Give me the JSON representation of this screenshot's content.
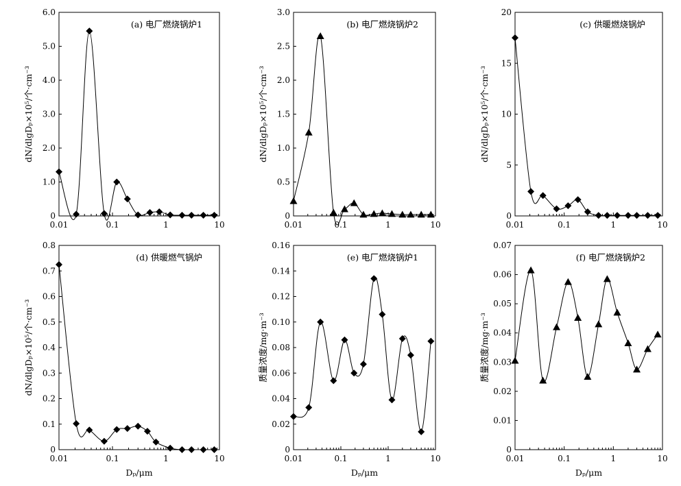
{
  "figure": {
    "x_axis_label": "Dₚ/μm",
    "x_ticks": [
      "0.01",
      "0.1",
      "1",
      "10"
    ]
  },
  "chart_data": [
    {
      "type": "line",
      "title": "(a) 电厂燃烧锅炉1",
      "ylabel": "dN/dlgDₚ×10⁵/个·cm⁻³",
      "xlabel": "",
      "xscale": "log",
      "xlim": [
        0.01,
        10
      ],
      "ylim": [
        0,
        6.0
      ],
      "yticks": [
        "0",
        "1.0",
        "2.0",
        "3.0",
        "4.0",
        "5.0",
        "6.0"
      ],
      "marker": "diamond",
      "grid": false,
      "series": [
        {
          "x": [
            0.01,
            0.021,
            0.037,
            0.07,
            0.12,
            0.19,
            0.3,
            0.5,
            0.75,
            1.2,
            2,
            3,
            5,
            8
          ],
          "y": [
            1.3,
            0.05,
            5.45,
            0.07,
            1.0,
            0.5,
            0.03,
            0.1,
            0.12,
            0.03,
            0.02,
            0.02,
            0.02,
            0.02
          ]
        }
      ]
    },
    {
      "type": "line",
      "title": "(b) 电厂燃烧锅炉2",
      "ylabel": "dN/dlgDₚ×10⁵/个·cm⁻³",
      "xlabel": "",
      "xscale": "log",
      "xlim": [
        0.01,
        10
      ],
      "ylim": [
        0,
        3.0
      ],
      "yticks": [
        "0",
        "0.5",
        "1.0",
        "1.5",
        "2.0",
        "2.5",
        "3.0"
      ],
      "marker": "triangle",
      "grid": false,
      "series": [
        {
          "x": [
            0.01,
            0.021,
            0.037,
            0.07,
            0.12,
            0.19,
            0.3,
            0.5,
            0.75,
            1.2,
            2,
            3,
            5,
            8
          ],
          "y": [
            0.22,
            1.23,
            2.65,
            0.05,
            0.1,
            0.19,
            0.02,
            0.03,
            0.04,
            0.03,
            0.02,
            0.02,
            0.02,
            0.02
          ]
        }
      ]
    },
    {
      "type": "line",
      "title": "(c) 供暖燃烧锅炉",
      "ylabel": "dN/dlgDₚ×10⁵/个·cm⁻³",
      "xlabel": "",
      "xscale": "log",
      "xlim": [
        0.01,
        10
      ],
      "ylim": [
        0,
        20
      ],
      "yticks": [
        "0",
        "5",
        "10",
        "15",
        "20"
      ],
      "marker": "diamond",
      "grid": false,
      "series": [
        {
          "x": [
            0.01,
            0.021,
            0.037,
            0.07,
            0.12,
            0.19,
            0.3,
            0.5,
            0.75,
            1.2,
            2,
            3,
            5,
            8
          ],
          "y": [
            17.5,
            2.4,
            2.0,
            0.7,
            1.0,
            1.6,
            0.4,
            0.05,
            0.05,
            0.05,
            0.05,
            0.05,
            0.05,
            0.05
          ]
        }
      ]
    },
    {
      "type": "line",
      "title": "(d) 供暖燃气锅炉",
      "ylabel": "dN/dlgDₚ×10⁵/个·cm⁻³",
      "xlabel": "Dₚ/μm",
      "xscale": "log",
      "xlim": [
        0.01,
        10
      ],
      "ylim": [
        0,
        0.8
      ],
      "yticks": [
        "0",
        "0.1",
        "0.2",
        "0.3",
        "0.4",
        "0.5",
        "0.6",
        "0.7",
        "0.8"
      ],
      "marker": "diamond",
      "grid": false,
      "series": [
        {
          "x": [
            0.01,
            0.021,
            0.037,
            0.07,
            0.12,
            0.19,
            0.3,
            0.45,
            0.65,
            1.2,
            2,
            3,
            5,
            8
          ],
          "y": [
            0.725,
            0.102,
            0.077,
            0.033,
            0.079,
            0.083,
            0.092,
            0.072,
            0.03,
            0.006,
            0.0,
            0.0,
            0.0,
            0.0
          ]
        }
      ]
    },
    {
      "type": "line",
      "title": "(e) 电厂燃烧锅炉1",
      "ylabel": "质量浓度/mg·m⁻³",
      "xlabel": "Dₚ/μm",
      "xscale": "log",
      "xlim": [
        0.01,
        10
      ],
      "ylim": [
        0,
        0.16
      ],
      "yticks": [
        "0",
        "0.02",
        "0.04",
        "0.06",
        "0.08",
        "0.10",
        "0.12",
        "0.14",
        "0.16"
      ],
      "marker": "diamond",
      "grid": false,
      "series": [
        {
          "x": [
            0.01,
            0.021,
            0.037,
            0.07,
            0.12,
            0.19,
            0.3,
            0.5,
            0.75,
            1.2,
            2,
            3,
            5,
            8
          ],
          "y": [
            0.026,
            0.033,
            0.1,
            0.054,
            0.086,
            0.06,
            0.067,
            0.134,
            0.106,
            0.039,
            0.087,
            0.074,
            0.014,
            0.085
          ]
        }
      ]
    },
    {
      "type": "line",
      "title": "(f) 电厂燃烧锅炉2",
      "ylabel": "质量浓度/mg·m⁻³",
      "xlabel": "Dₚ/μm",
      "xscale": "log",
      "xlim": [
        0.01,
        10
      ],
      "ylim": [
        0,
        0.07
      ],
      "yticks": [
        "0",
        "0.01",
        "0.02",
        "0.03",
        "0.04",
        "0.05",
        "0.06",
        "0.07"
      ],
      "marker": "triangle",
      "grid": false,
      "series": [
        {
          "x": [
            0.01,
            0.021,
            0.037,
            0.07,
            0.12,
            0.19,
            0.3,
            0.5,
            0.75,
            1.2,
            2,
            3,
            5,
            8
          ],
          "y": [
            0.0305,
            0.0615,
            0.0237,
            0.042,
            0.0575,
            0.0452,
            0.025,
            0.043,
            0.0585,
            0.047,
            0.0365,
            0.0275,
            0.0345,
            0.0395
          ]
        }
      ]
    }
  ]
}
